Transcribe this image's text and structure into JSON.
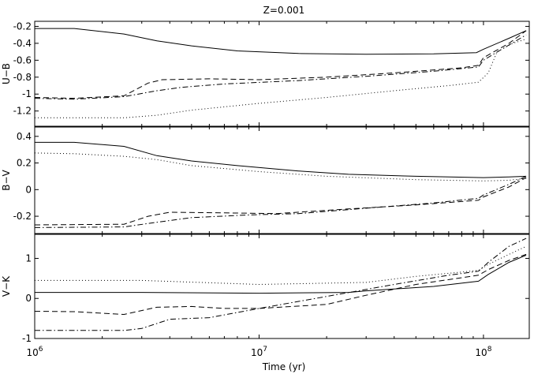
{
  "chart_data": {
    "type": "line",
    "title": "Z=0.001",
    "xlabel": "Time (yr)",
    "xscale": "log",
    "xlim": [
      1000000,
      160000000
    ],
    "x_ticks": [
      1000000,
      10000000,
      100000000
    ],
    "x_tick_labels": [
      {
        "base": "10",
        "exp": "6"
      },
      {
        "base": "10",
        "exp": "7"
      },
      {
        "base": "10",
        "exp": "8"
      }
    ],
    "panels": [
      {
        "ylabel": "U−B",
        "ylim": [
          -1.38,
          -0.14
        ],
        "y_ticks": [
          -0.2,
          -0.4,
          -0.6,
          -0.8,
          -1.0,
          -1.2
        ],
        "y_tick_labels": [
          "-0.2",
          "-0.4",
          "-0.6",
          "-0.8",
          "-1",
          "-1.2"
        ],
        "series": [
          {
            "style": "solid",
            "points": [
              [
                1000000,
                -0.225
              ],
              [
                1500000,
                -0.225
              ],
              [
                2500000,
                -0.29
              ],
              [
                3500000,
                -0.37
              ],
              [
                5000000,
                -0.43
              ],
              [
                8000000,
                -0.49
              ],
              [
                15000000,
                -0.52
              ],
              [
                30000000,
                -0.53
              ],
              [
                60000000,
                -0.525
              ],
              [
                93000000,
                -0.51
              ],
              [
                100000000,
                -0.47
              ],
              [
                130000000,
                -0.34
              ],
              [
                155000000,
                -0.25
              ]
            ]
          },
          {
            "style": "dashed",
            "points": [
              [
                1000000,
                -1.04
              ],
              [
                1500000,
                -1.05
              ],
              [
                2500000,
                -1.02
              ],
              [
                3200000,
                -0.87
              ],
              [
                3700000,
                -0.83
              ],
              [
                6000000,
                -0.82
              ],
              [
                10000000,
                -0.83
              ],
              [
                20000000,
                -0.8
              ],
              [
                40000000,
                -0.75
              ],
              [
                80000000,
                -0.69
              ],
              [
                95000000,
                -0.66
              ],
              [
                100000000,
                -0.57
              ],
              [
                130000000,
                -0.4
              ],
              [
                155000000,
                -0.25
              ]
            ]
          },
          {
            "style": "dashdot",
            "points": [
              [
                1000000,
                -1.05
              ],
              [
                1500000,
                -1.06
              ],
              [
                2500000,
                -1.03
              ],
              [
                3500000,
                -0.96
              ],
              [
                4500000,
                -0.92
              ],
              [
                7000000,
                -0.88
              ],
              [
                15000000,
                -0.84
              ],
              [
                30000000,
                -0.79
              ],
              [
                60000000,
                -0.73
              ],
              [
                95000000,
                -0.68
              ],
              [
                100000000,
                -0.6
              ],
              [
                130000000,
                -0.42
              ],
              [
                155000000,
                -0.3
              ]
            ]
          },
          {
            "style": "dotted",
            "points": [
              [
                1000000,
                -1.28
              ],
              [
                1500000,
                -1.28
              ],
              [
                2500000,
                -1.28
              ],
              [
                3500000,
                -1.25
              ],
              [
                5000000,
                -1.19
              ],
              [
                10000000,
                -1.11
              ],
              [
                20000000,
                -1.04
              ],
              [
                40000000,
                -0.96
              ],
              [
                70000000,
                -0.9
              ],
              [
                95000000,
                -0.86
              ],
              [
                105000000,
                -0.75
              ],
              [
                115000000,
                -0.5
              ],
              [
                135000000,
                -0.4
              ],
              [
                155000000,
                -0.35
              ]
            ]
          }
        ]
      },
      {
        "ylabel": "B−V",
        "ylim": [
          -0.33,
          0.47
        ],
        "y_ticks": [
          0.4,
          0.2,
          0.0,
          -0.2
        ],
        "y_tick_labels": [
          "0.4",
          "0.2",
          "0",
          "-0.2"
        ],
        "series": [
          {
            "style": "solid",
            "points": [
              [
                1000000,
                0.355
              ],
              [
                1500000,
                0.355
              ],
              [
                2500000,
                0.325
              ],
              [
                3500000,
                0.255
              ],
              [
                5000000,
                0.215
              ],
              [
                8000000,
                0.18
              ],
              [
                15000000,
                0.14
              ],
              [
                25000000,
                0.115
              ],
              [
                50000000,
                0.1
              ],
              [
                100000000,
                0.09
              ],
              [
                130000000,
                0.095
              ],
              [
                155000000,
                0.1
              ]
            ]
          },
          {
            "style": "dashed",
            "points": [
              [
                1000000,
                -0.265
              ],
              [
                2500000,
                -0.26
              ],
              [
                3200000,
                -0.2
              ],
              [
                4000000,
                -0.17
              ],
              [
                7000000,
                -0.175
              ],
              [
                12000000,
                -0.18
              ],
              [
                25000000,
                -0.145
              ],
              [
                50000000,
                -0.115
              ],
              [
                95000000,
                -0.08
              ],
              [
                100000000,
                -0.055
              ],
              [
                130000000,
                0.02
              ],
              [
                155000000,
                0.09
              ]
            ]
          },
          {
            "style": "dashdot",
            "points": [
              [
                1000000,
                -0.285
              ],
              [
                2500000,
                -0.28
              ],
              [
                3500000,
                -0.245
              ],
              [
                5000000,
                -0.21
              ],
              [
                9000000,
                -0.19
              ],
              [
                15000000,
                -0.18
              ],
              [
                30000000,
                -0.14
              ],
              [
                60000000,
                -0.1
              ],
              [
                95000000,
                -0.065
              ],
              [
                100000000,
                -0.04
              ],
              [
                130000000,
                0.04
              ],
              [
                155000000,
                0.1
              ]
            ]
          },
          {
            "style": "dotted",
            "points": [
              [
                1000000,
                0.275
              ],
              [
                1500000,
                0.27
              ],
              [
                2500000,
                0.25
              ],
              [
                3500000,
                0.225
              ],
              [
                5000000,
                0.18
              ],
              [
                10000000,
                0.135
              ],
              [
                20000000,
                0.1
              ],
              [
                50000000,
                0.075
              ],
              [
                100000000,
                0.065
              ],
              [
                130000000,
                0.07
              ],
              [
                155000000,
                0.085
              ]
            ]
          }
        ]
      },
      {
        "ylabel": "V−K",
        "ylim": [
          -1.0,
          1.6
        ],
        "y_ticks": [
          1,
          0,
          -1
        ],
        "y_tick_labels": [
          "1",
          "0",
          "-1"
        ],
        "series": [
          {
            "style": "solid",
            "points": [
              [
                1000000,
                0.15
              ],
              [
                3000000,
                0.15
              ],
              [
                10000000,
                0.13
              ],
              [
                25000000,
                0.15
              ],
              [
                30000000,
                0.19
              ],
              [
                60000000,
                0.3
              ],
              [
                95000000,
                0.43
              ],
              [
                105000000,
                0.6
              ],
              [
                130000000,
                0.9
              ],
              [
                155000000,
                1.08
              ]
            ]
          },
          {
            "style": "dashed",
            "points": [
              [
                1000000,
                -0.32
              ],
              [
                1500000,
                -0.33
              ],
              [
                2500000,
                -0.4
              ],
              [
                3500000,
                -0.22
              ],
              [
                5000000,
                -0.2
              ],
              [
                7000000,
                -0.25
              ],
              [
                10000000,
                -0.25
              ],
              [
                20000000,
                -0.15
              ],
              [
                30000000,
                0.08
              ],
              [
                50000000,
                0.35
              ],
              [
                95000000,
                0.58
              ],
              [
                105000000,
                0.72
              ],
              [
                130000000,
                0.95
              ],
              [
                155000000,
                1.1
              ]
            ]
          },
          {
            "style": "dashdot",
            "points": [
              [
                1000000,
                -0.8
              ],
              [
                2500000,
                -0.8
              ],
              [
                3000000,
                -0.75
              ],
              [
                4000000,
                -0.52
              ],
              [
                6000000,
                -0.48
              ],
              [
                10000000,
                -0.25
              ],
              [
                20000000,
                0.05
              ],
              [
                40000000,
                0.35
              ],
              [
                70000000,
                0.58
              ],
              [
                95000000,
                0.68
              ],
              [
                105000000,
                0.9
              ],
              [
                130000000,
                1.3
              ],
              [
                155000000,
                1.5
              ]
            ]
          },
          {
            "style": "dotted",
            "points": [
              [
                1000000,
                0.45
              ],
              [
                3000000,
                0.45
              ],
              [
                10000000,
                0.35
              ],
              [
                30000000,
                0.4
              ],
              [
                50000000,
                0.55
              ],
              [
                95000000,
                0.7
              ],
              [
                105000000,
                0.85
              ],
              [
                130000000,
                1.1
              ],
              [
                155000000,
                1.3
              ]
            ]
          }
        ]
      }
    ]
  }
}
